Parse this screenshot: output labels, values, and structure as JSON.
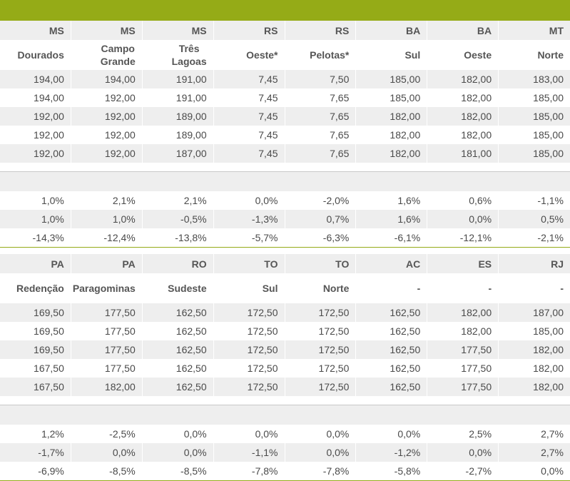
{
  "section1": {
    "states": [
      "MS",
      "MS",
      "MS",
      "RS",
      "RS",
      "BA",
      "BA",
      "MT"
    ],
    "cities": [
      [
        "Dourados"
      ],
      [
        "Campo",
        "Grande"
      ],
      [
        "Três",
        "Lagoas"
      ],
      [
        "Oeste*"
      ],
      [
        "Pelotas*"
      ],
      [
        "Sul"
      ],
      [
        "Oeste"
      ],
      [
        "Norte"
      ]
    ],
    "prices": [
      [
        "194,00",
        "194,00",
        "191,00",
        "7,45",
        "7,50",
        "185,00",
        "182,00",
        "183,00"
      ],
      [
        "194,00",
        "192,00",
        "191,00",
        "7,45",
        "7,65",
        "185,00",
        "182,00",
        "185,00"
      ],
      [
        "192,00",
        "192,00",
        "189,00",
        "7,45",
        "7,65",
        "182,00",
        "182,00",
        "185,00"
      ],
      [
        "192,00",
        "192,00",
        "189,00",
        "7,45",
        "7,65",
        "182,00",
        "182,00",
        "185,00"
      ],
      [
        "192,00",
        "192,00",
        "187,00",
        "7,45",
        "7,65",
        "182,00",
        "181,00",
        "185,00"
      ]
    ],
    "changes": [
      [
        "1,0%",
        "2,1%",
        "2,1%",
        "0,0%",
        "-2,0%",
        "1,6%",
        "0,6%",
        "-1,1%"
      ],
      [
        "1,0%",
        "1,0%",
        "-0,5%",
        "-1,3%",
        "0,7%",
        "1,6%",
        "0,0%",
        "0,5%"
      ],
      [
        "-14,3%",
        "-12,4%",
        "-13,8%",
        "-5,7%",
        "-6,3%",
        "-6,1%",
        "-12,1%",
        "-2,1%"
      ]
    ]
  },
  "section2": {
    "states": [
      "PA",
      "PA",
      "RO",
      "TO",
      "TO",
      "AC",
      "ES",
      "RJ"
    ],
    "cities": [
      [
        "Redenção"
      ],
      [
        "Paragominas"
      ],
      [
        "Sudeste"
      ],
      [
        "Sul"
      ],
      [
        "Norte"
      ],
      [
        "-"
      ],
      [
        "-"
      ],
      [
        "-"
      ]
    ],
    "prices": [
      [
        "169,50",
        "177,50",
        "162,50",
        "172,50",
        "172,50",
        "162,50",
        "182,00",
        "187,00"
      ],
      [
        "169,50",
        "177,50",
        "162,50",
        "172,50",
        "172,50",
        "162,50",
        "182,00",
        "185,00"
      ],
      [
        "169,50",
        "177,50",
        "162,50",
        "172,50",
        "172,50",
        "162,50",
        "177,50",
        "182,00"
      ],
      [
        "167,50",
        "177,50",
        "162,50",
        "172,50",
        "172,50",
        "162,50",
        "177,50",
        "182,00"
      ],
      [
        "167,50",
        "182,00",
        "162,50",
        "172,50",
        "172,50",
        "162,50",
        "177,50",
        "182,00"
      ]
    ],
    "changes": [
      [
        "1,2%",
        "-2,5%",
        "0,0%",
        "0,0%",
        "0,0%",
        "0,0%",
        "2,5%",
        "2,7%"
      ],
      [
        "-1,7%",
        "0,0%",
        "0,0%",
        "-1,1%",
        "0,0%",
        "-1,2%",
        "0,0%",
        "2,7%"
      ],
      [
        "-6,9%",
        "-8,5%",
        "-8,5%",
        "-7,8%",
        "-7,8%",
        "-5,8%",
        "-2,7%",
        "0,0%"
      ]
    ]
  },
  "colors": {
    "accent": "#95ab17",
    "row_grey": "#eeeeee",
    "text": "#4a4a4a"
  }
}
